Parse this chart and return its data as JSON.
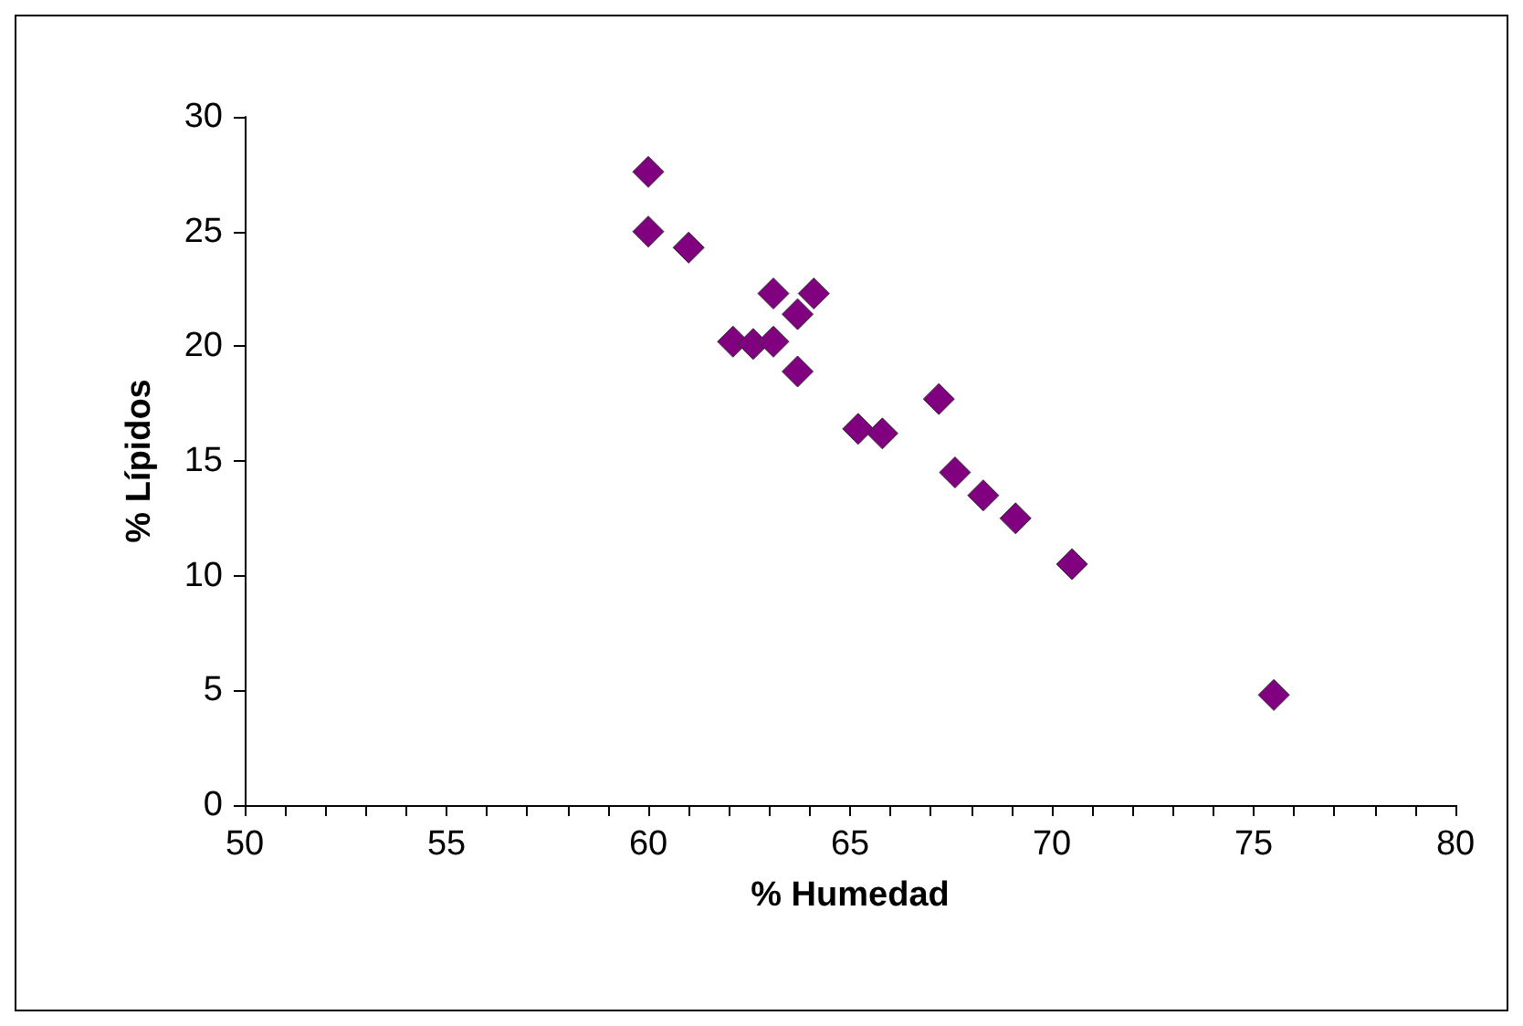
{
  "chart_data": {
    "type": "scatter",
    "xlabel": "% Humedad",
    "ylabel": "% Lípidos",
    "marker": "diamond",
    "grid": false,
    "x": [
      60.0,
      60.0,
      61.0,
      62.1,
      62.6,
      63.1,
      63.1,
      63.7,
      64.1,
      63.7,
      65.2,
      65.8,
      67.2,
      67.6,
      68.3,
      69.1,
      70.5,
      75.5
    ],
    "series": [
      {
        "color": "#800080",
        "values": [
          27.6,
          25.0,
          24.3,
          20.2,
          20.1,
          20.2,
          22.3,
          21.4,
          22.3,
          18.9,
          16.4,
          16.2,
          17.7,
          14.5,
          13.5,
          12.5,
          10.5,
          4.8
        ]
      }
    ],
    "xlim": [
      50,
      80
    ],
    "ylim": [
      0,
      30
    ],
    "xticks": [
      50,
      {
        "value": 51,
        "label": null
      },
      {
        "value": 52,
        "label": null
      },
      {
        "value": 53,
        "label": null
      },
      {
        "value": 54,
        "label": null
      },
      55,
      {
        "value": 56,
        "label": null
      },
      {
        "value": 57,
        "label": null
      },
      {
        "value": 58,
        "label": null
      },
      {
        "value": 59,
        "label": null
      },
      60,
      {
        "value": 61,
        "label": null
      },
      {
        "value": 62,
        "label": null
      },
      {
        "value": 63,
        "label": null
      },
      {
        "value": 64,
        "label": null
      },
      65,
      {
        "value": 66,
        "label": null
      },
      {
        "value": 67,
        "label": null
      },
      {
        "value": 68,
        "label": null
      },
      {
        "value": 69,
        "label": null
      },
      70,
      {
        "value": 71,
        "label": null
      },
      {
        "value": 72,
        "label": null
      },
      {
        "value": 73,
        "label": null
      },
      {
        "value": 74,
        "label": null
      },
      75,
      {
        "value": 76,
        "label": null
      },
      {
        "value": 77,
        "label": null
      },
      {
        "value": 78,
        "label": null
      },
      {
        "value": 79,
        "label": null
      },
      80
    ],
    "yticks": [
      0,
      5,
      10,
      15,
      20,
      25,
      30
    ]
  }
}
